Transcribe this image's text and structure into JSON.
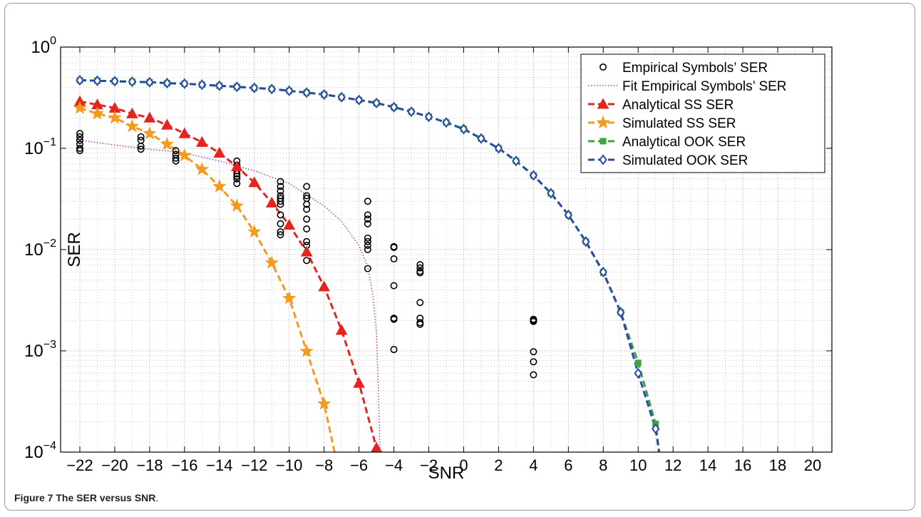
{
  "caption": {
    "label": "Figure 7",
    "title": "The SER versus SNR",
    "suffix": "."
  },
  "chart_data": {
    "type": "line",
    "xlabel": "SNR",
    "ylabel": "SER",
    "xlim": [
      -22,
      20
    ],
    "ylim": [
      0.0001,
      1
    ],
    "yscale": "log",
    "grid": true,
    "legend_position": "top-right",
    "x_ticks": [
      -22,
      -20,
      -18,
      -16,
      -14,
      -12,
      -10,
      -8,
      -6,
      -4,
      -2,
      0,
      2,
      4,
      6,
      8,
      10,
      12,
      14,
      16,
      18,
      20
    ],
    "x_tick_labels": [
      "−22",
      "−20",
      "−18",
      "−16",
      "−14",
      "−12",
      "−10",
      "−8",
      "−6",
      "−4",
      "−2",
      "0",
      "2",
      "4",
      "6",
      "8",
      "10",
      "12",
      "14",
      "16",
      "18",
      "20"
    ],
    "y_ticks": [
      {
        "value": 1,
        "base": "10",
        "exp": "0"
      },
      {
        "value": 0.1,
        "base": "10",
        "exp": "−1"
      },
      {
        "value": 0.01,
        "base": "10",
        "exp": "−2"
      },
      {
        "value": 0.001,
        "base": "10",
        "exp": "−3"
      },
      {
        "value": 0.0001,
        "base": "10",
        "exp": "−4"
      }
    ],
    "series": [
      {
        "name": "Empirical Symbols’ SER",
        "style": "markers",
        "marker": "circle",
        "color": "#000000",
        "x": [
          -22,
          -22,
          -22,
          -22,
          -22,
          -22,
          -18.5,
          -18.5,
          -18.5,
          -18.5,
          -16.5,
          -16.5,
          -16.5,
          -16.5,
          -13,
          -13,
          -13,
          -13,
          -13,
          -13,
          -13,
          -10.5,
          -10.5,
          -10.5,
          -10.5,
          -10.5,
          -10.5,
          -10.5,
          -10.5,
          -10.5,
          -10.5,
          -10.5,
          -9,
          -9,
          -9,
          -9,
          -9,
          -9,
          -9,
          -9,
          -9,
          -9,
          -5.5,
          -5.5,
          -5.5,
          -5.5,
          -5.5,
          -5.5,
          -5.5,
          -5.5,
          -5.5,
          -4,
          -4,
          -4,
          -4,
          -4,
          -4,
          -4,
          -2.5,
          -2.5,
          -2.5,
          -2.5,
          -2.5,
          -2.5,
          -2.5,
          -2.5,
          4,
          4,
          4,
          4,
          4,
          4
        ],
        "y": [
          0.14,
          0.13,
          0.12,
          0.11,
          0.1,
          0.095,
          0.13,
          0.12,
          0.105,
          0.098,
          0.095,
          0.087,
          0.08,
          0.075,
          0.075,
          0.068,
          0.06,
          0.056,
          0.053,
          0.05,
          0.045,
          0.047,
          0.042,
          0.038,
          0.034,
          0.032,
          0.03,
          0.028,
          0.022,
          0.018,
          0.015,
          0.014,
          0.042,
          0.034,
          0.032,
          0.028,
          0.025,
          0.02,
          0.016,
          0.012,
          0.011,
          0.0078,
          0.03,
          0.022,
          0.02,
          0.018,
          0.013,
          0.012,
          0.011,
          0.01,
          0.0065,
          0.0107,
          0.0105,
          0.0081,
          0.0044,
          0.0021,
          0.00205,
          0.00103,
          0.0071,
          0.0066,
          0.0061,
          0.0059,
          0.003,
          0.0021,
          0.0019,
          0.00183,
          0.00205,
          0.002,
          0.00195,
          0.00098,
          0.00078,
          0.00058
        ]
      },
      {
        "name": "Fit Empirical Symbols’ SER",
        "style": "dotted",
        "marker": "none",
        "color": "#b044b0",
        "x": [
          -22,
          -20,
          -18,
          -16,
          -14,
          -12,
          -10,
          -8,
          -7,
          -6,
          -5.5,
          -5.2,
          -5,
          -4.9,
          -4.8
        ],
        "y": [
          0.12,
          0.108,
          0.098,
          0.09,
          0.075,
          0.06,
          0.045,
          0.027,
          0.019,
          0.011,
          0.0068,
          0.0035,
          0.0015,
          0.0005,
          0.0001
        ]
      },
      {
        "name": "Analytical SS SER",
        "style": "dashed",
        "marker": "triangle",
        "color": "#e5241f",
        "x": [
          -22,
          -21,
          -20,
          -19,
          -18,
          -17,
          -16,
          -15,
          -14,
          -13,
          -12,
          -11,
          -10,
          -9,
          -8,
          -7,
          -6,
          -5,
          -4.7
        ],
        "y": [
          0.29,
          0.27,
          0.25,
          0.22,
          0.2,
          0.17,
          0.14,
          0.115,
          0.09,
          0.066,
          0.046,
          0.029,
          0.0175,
          0.0095,
          0.0043,
          0.0016,
          0.00048,
          0.00011,
          0.0001
        ]
      },
      {
        "name": "Simulated SS SER",
        "style": "dashed",
        "marker": "star",
        "color": "#f39a1f",
        "x": [
          -22,
          -21,
          -20,
          -19,
          -18,
          -17,
          -16,
          -15,
          -14,
          -13,
          -12,
          -11,
          -10,
          -9,
          -8,
          -7.4
        ],
        "y": [
          0.25,
          0.22,
          0.2,
          0.165,
          0.14,
          0.11,
          0.085,
          0.062,
          0.042,
          0.027,
          0.015,
          0.0074,
          0.0033,
          0.00099,
          0.0003,
          0.0001
        ]
      },
      {
        "name": "Analytical OOK SER",
        "style": "dashed",
        "marker": "square",
        "color": "#3aa63a",
        "x": [
          -22,
          -21,
          -20,
          -19,
          -18,
          -17,
          -16,
          -15,
          -14,
          -13,
          -12,
          -11,
          -10,
          -9,
          -8,
          -7,
          -6,
          -5,
          -4,
          -3,
          -2,
          -1,
          0,
          1,
          2,
          3,
          4,
          5,
          6,
          7,
          8,
          9,
          10,
          11,
          11.2
        ],
        "y": [
          0.47,
          0.465,
          0.46,
          0.455,
          0.45,
          0.44,
          0.435,
          0.425,
          0.415,
          0.405,
          0.395,
          0.385,
          0.37,
          0.355,
          0.34,
          0.32,
          0.3,
          0.28,
          0.255,
          0.23,
          0.205,
          0.18,
          0.155,
          0.125,
          0.1,
          0.075,
          0.054,
          0.036,
          0.022,
          0.012,
          0.0059,
          0.0024,
          0.00076,
          0.00019,
          0.0001
        ]
      },
      {
        "name": "Simulated OOK SER",
        "style": "dashed",
        "marker": "diamond",
        "color": "#2a4aa8",
        "x": [
          -22,
          -21,
          -20,
          -19,
          -18,
          -17,
          -16,
          -15,
          -14,
          -13,
          -12,
          -11,
          -10,
          -9,
          -8,
          -7,
          -6,
          -5,
          -4,
          -3,
          -2,
          -1,
          0,
          1,
          2,
          3,
          4,
          5,
          6,
          7,
          8,
          9,
          10,
          11,
          11.2
        ],
        "y": [
          0.47,
          0.465,
          0.46,
          0.455,
          0.45,
          0.44,
          0.435,
          0.425,
          0.415,
          0.405,
          0.395,
          0.385,
          0.37,
          0.355,
          0.34,
          0.32,
          0.3,
          0.28,
          0.255,
          0.23,
          0.205,
          0.18,
          0.155,
          0.125,
          0.1,
          0.075,
          0.054,
          0.036,
          0.022,
          0.012,
          0.006,
          0.0024,
          0.0006,
          0.00017,
          0.0001
        ]
      }
    ]
  }
}
